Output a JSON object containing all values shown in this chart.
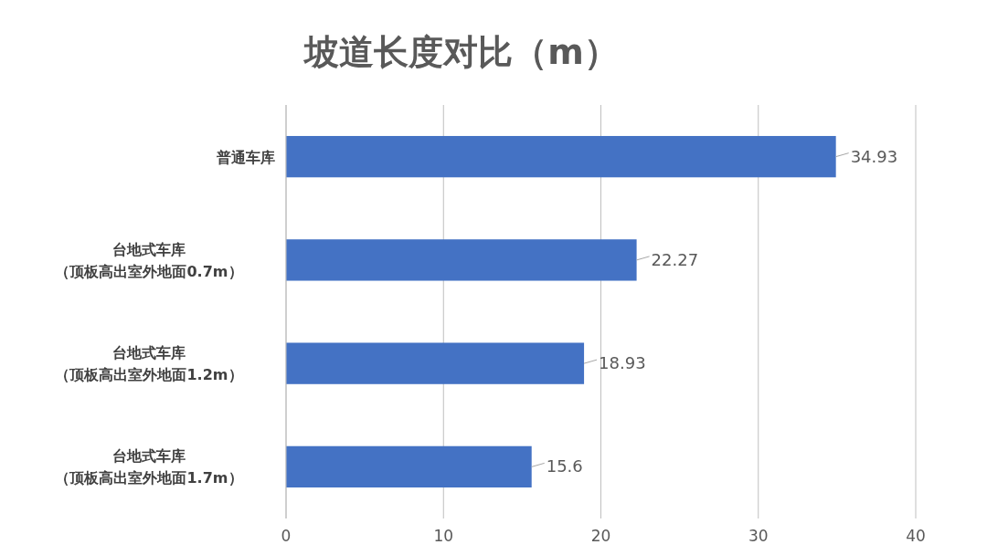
{
  "chart_data": {
    "type": "bar",
    "orientation": "horizontal",
    "title": "坡道长度对比（m）",
    "categories": [
      "普通车库",
      "台地式车库（顶板高出室外地面0.7m）",
      "台地式车库（顶板高出室外地面1.2m）",
      "台地式车库（顶板高出室外地面1.7m）"
    ],
    "values": [
      34.93,
      22.27,
      18.93,
      15.6
    ],
    "color": "#4472c4",
    "xlim": [
      0,
      40
    ],
    "xticks": [
      0,
      10,
      20,
      30,
      40
    ],
    "grid": "x",
    "data_labels": true
  }
}
